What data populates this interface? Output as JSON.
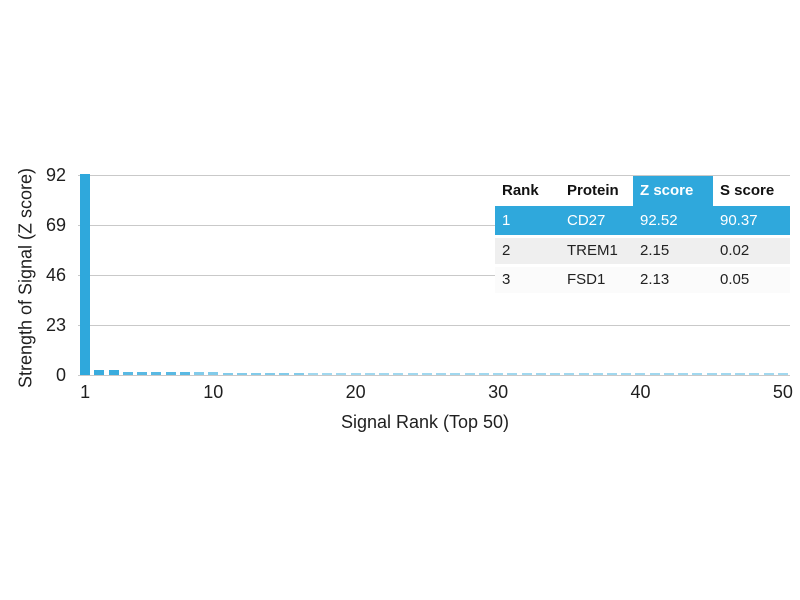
{
  "colors": {
    "bar_blue": "#2fa8dc",
    "highlight_blue": "#2fa8dc",
    "gridline_gray": "#c9c9c9",
    "row_alt_bg": "#efefef",
    "row_plain_bg": "#fbfbfb",
    "highlight_text": "#ffffff"
  },
  "chart_data": {
    "type": "bar",
    "title": "",
    "xlabel": "Signal Rank (Top 50)",
    "ylabel": "Strength of Signal (Z score)",
    "ylim": [
      0,
      92
    ],
    "yticks": [
      0,
      23,
      46,
      69,
      92
    ],
    "xticks": [
      1,
      10,
      20,
      30,
      40,
      50
    ],
    "x_range": [
      1,
      50
    ],
    "grid": "horizontal",
    "values": [
      92.52,
      2.15,
      2.13,
      1.3,
      1.3,
      1.3,
      1.3,
      1.3,
      1.25,
      1.25,
      1.15,
      1.15,
      1.15,
      1.15,
      1.1,
      1.1,
      1.1,
      1.1,
      1.1,
      1.1,
      1.05,
      1.0,
      1.0,
      1.0,
      1.0,
      1.0,
      1.0,
      1.0,
      1.0,
      1.0,
      1.0,
      1.0,
      1.0,
      1.0,
      0.95,
      0.95,
      0.95,
      0.95,
      0.95,
      0.95,
      0.95,
      0.95,
      0.95,
      0.95,
      0.95,
      0.95,
      0.95,
      0.95,
      0.95,
      0.95
    ]
  },
  "table": {
    "headers": [
      "Rank",
      "Protein",
      "Z score",
      "S score"
    ],
    "highlight_col_index": 2,
    "rows": [
      {
        "cells": [
          "1",
          "CD27",
          "92.52",
          "90.37"
        ],
        "highlight": true
      },
      {
        "cells": [
          "2",
          "TREM1",
          "2.15",
          "0.02"
        ],
        "highlight": false
      },
      {
        "cells": [
          "3",
          "FSD1",
          "2.13",
          "0.05"
        ],
        "highlight": false
      }
    ]
  }
}
